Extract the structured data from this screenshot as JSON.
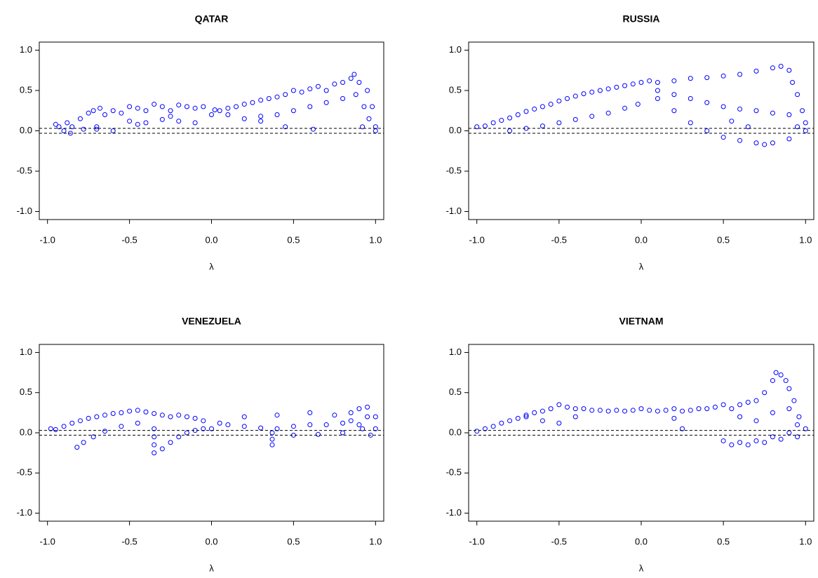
{
  "chart_data": [
    {
      "type": "scatter",
      "title": "QATAR",
      "x_label": "λ",
      "color": "#0000ff",
      "hlines": [
        0.03,
        -0.03
      ],
      "xlim": [
        -1.05,
        1.05
      ],
      "ylim": [
        -1.1,
        1.1
      ],
      "xticks": [
        {
          "value": -1,
          "label": "-1.0"
        },
        -0.5,
        {
          "value": 0,
          "label": "0.0"
        },
        0.5,
        {
          "value": 1,
          "label": "1.0"
        }
      ],
      "yticks": [
        {
          "value": -1,
          "label": "-1.0"
        },
        -0.5,
        {
          "value": 0,
          "label": "0.0"
        },
        0.5,
        {
          "value": 1,
          "label": "1.0"
        }
      ],
      "x": [
        -0.95,
        -0.93,
        -0.9,
        -0.88,
        -0.86,
        -0.85,
        -0.8,
        -0.78,
        -0.75,
        -0.72,
        -0.7,
        -0.68,
        -0.65,
        -0.6,
        -0.55,
        -0.5,
        -0.45,
        -0.4,
        -0.35,
        -0.3,
        -0.25,
        -0.2,
        -0.15,
        -0.1,
        -0.05,
        0.0,
        0.02,
        0.05,
        0.1,
        0.15,
        0.2,
        0.25,
        0.3,
        0.35,
        0.4,
        0.45,
        0.5,
        0.55,
        0.6,
        0.65,
        0.7,
        0.75,
        0.8,
        0.85,
        0.87,
        0.9,
        0.92,
        0.95,
        0.98,
        1.0,
        -0.7,
        -0.6,
        -0.5,
        -0.4,
        -0.3,
        -0.2,
        -0.1,
        0.1,
        0.2,
        0.3,
        0.4,
        0.5,
        0.6,
        0.7,
        0.8,
        0.88,
        0.93,
        0.96,
        1.0,
        0.62,
        0.45,
        0.3,
        -0.45,
        -0.25
      ],
      "y": [
        0.08,
        0.05,
        0.0,
        0.1,
        -0.03,
        0.05,
        0.15,
        0.02,
        0.22,
        0.25,
        0.05,
        0.28,
        0.2,
        0.25,
        0.22,
        0.3,
        0.28,
        0.25,
        0.33,
        0.3,
        0.25,
        0.32,
        0.3,
        0.28,
        0.3,
        0.2,
        0.26,
        0.25,
        0.28,
        0.3,
        0.33,
        0.35,
        0.38,
        0.4,
        0.42,
        0.45,
        0.5,
        0.48,
        0.52,
        0.55,
        0.5,
        0.58,
        0.6,
        0.65,
        0.7,
        0.6,
        0.05,
        0.5,
        0.3,
        0.0,
        0.02,
        0.0,
        0.12,
        0.1,
        0.14,
        0.12,
        0.1,
        0.2,
        0.15,
        0.12,
        0.2,
        0.25,
        0.3,
        0.35,
        0.4,
        0.45,
        0.3,
        0.15,
        0.05,
        0.02,
        0.05,
        0.18,
        0.08,
        0.18
      ]
    },
    {
      "type": "scatter",
      "title": "RUSSIA",
      "x_label": "λ",
      "color": "#0000ff",
      "hlines": [
        0.03,
        -0.03
      ],
      "xlim": [
        -1.05,
        1.05
      ],
      "ylim": [
        -1.1,
        1.1
      ],
      "xticks": [
        {
          "value": -1,
          "label": "-1.0"
        },
        -0.5,
        {
          "value": 0,
          "label": "0.0"
        },
        0.5,
        {
          "value": 1,
          "label": "1.0"
        }
      ],
      "yticks": [
        {
          "value": -1,
          "label": "-1.0"
        },
        -0.5,
        {
          "value": 0,
          "label": "0.0"
        },
        0.5,
        {
          "value": 1,
          "label": "1.0"
        }
      ],
      "x": [
        -1.0,
        -0.95,
        -0.9,
        -0.85,
        -0.8,
        -0.75,
        -0.7,
        -0.65,
        -0.6,
        -0.55,
        -0.5,
        -0.45,
        -0.4,
        -0.35,
        -0.3,
        -0.25,
        -0.2,
        -0.15,
        -0.1,
        -0.05,
        0.0,
        -0.8,
        -0.7,
        -0.6,
        -0.5,
        -0.4,
        -0.3,
        -0.2,
        -0.1,
        -0.02,
        0.05,
        0.1,
        0.2,
        0.3,
        0.4,
        0.5,
        0.6,
        0.7,
        0.8,
        0.85,
        0.9,
        0.1,
        0.2,
        0.3,
        0.4,
        0.5,
        0.6,
        0.7,
        0.8,
        0.9,
        0.1,
        0.2,
        0.3,
        0.4,
        0.5,
        0.6,
        0.7,
        0.75,
        0.8,
        0.9,
        0.95,
        1.0,
        0.92,
        0.95,
        0.98,
        1.0,
        0.55,
        0.65
      ],
      "y": [
        0.05,
        0.06,
        0.1,
        0.13,
        0.16,
        0.2,
        0.24,
        0.27,
        0.3,
        0.33,
        0.37,
        0.4,
        0.43,
        0.46,
        0.48,
        0.5,
        0.52,
        0.54,
        0.56,
        0.58,
        0.6,
        0.0,
        0.03,
        0.06,
        0.1,
        0.14,
        0.18,
        0.22,
        0.28,
        0.33,
        0.62,
        0.6,
        0.62,
        0.65,
        0.66,
        0.68,
        0.7,
        0.74,
        0.78,
        0.8,
        0.75,
        0.5,
        0.45,
        0.4,
        0.35,
        0.3,
        0.27,
        0.25,
        0.22,
        0.2,
        0.4,
        0.25,
        0.1,
        0.0,
        -0.08,
        -0.12,
        -0.15,
        -0.17,
        -0.15,
        -0.1,
        0.05,
        0.0,
        0.6,
        0.45,
        0.25,
        0.1,
        0.12,
        0.05
      ]
    },
    {
      "type": "scatter",
      "title": "VENEZUELA",
      "x_label": "λ",
      "color": "#0000ff",
      "hlines": [
        0.03,
        -0.03
      ],
      "xlim": [
        -1.05,
        1.05
      ],
      "ylim": [
        -1.1,
        1.1
      ],
      "xticks": [
        {
          "value": -1,
          "label": "-1.0"
        },
        -0.5,
        {
          "value": 0,
          "label": "0.0"
        },
        0.5,
        {
          "value": 1,
          "label": "1.0"
        }
      ],
      "yticks": [
        {
          "value": -1,
          "label": "-1.0"
        },
        -0.5,
        {
          "value": 0,
          "label": "0.0"
        },
        0.5,
        {
          "value": 1,
          "label": "1.0"
        }
      ],
      "x": [
        -0.98,
        -0.95,
        -0.9,
        -0.85,
        -0.8,
        -0.75,
        -0.7,
        -0.65,
        -0.6,
        -0.55,
        -0.5,
        -0.45,
        -0.4,
        -0.35,
        -0.3,
        -0.25,
        -0.2,
        -0.15,
        -0.1,
        -0.05,
        0.0,
        -0.82,
        -0.78,
        -0.72,
        -0.65,
        -0.55,
        -0.45,
        -0.35,
        -0.35,
        -0.35,
        -0.35,
        -0.3,
        -0.25,
        -0.2,
        -0.15,
        -0.1,
        -0.05,
        0.05,
        0.1,
        0.2,
        0.3,
        0.37,
        0.37,
        0.37,
        0.4,
        0.5,
        0.6,
        0.7,
        0.8,
        0.85,
        0.9,
        0.95,
        1.0,
        0.2,
        0.4,
        0.6,
        0.75,
        0.85,
        0.92,
        0.97,
        1.0,
        0.5,
        0.65,
        0.8,
        0.9,
        0.95
      ],
      "y": [
        0.05,
        0.04,
        0.08,
        0.12,
        0.15,
        0.18,
        0.2,
        0.22,
        0.24,
        0.25,
        0.27,
        0.28,
        0.26,
        0.24,
        0.22,
        0.2,
        0.22,
        0.2,
        0.18,
        0.15,
        0.05,
        -0.18,
        -0.12,
        -0.05,
        0.02,
        0.08,
        0.12,
        0.05,
        -0.05,
        -0.15,
        -0.25,
        -0.2,
        -0.12,
        -0.05,
        0.0,
        0.03,
        0.05,
        0.12,
        0.1,
        0.08,
        0.06,
        0.0,
        -0.08,
        -0.15,
        0.05,
        0.08,
        0.1,
        0.1,
        0.12,
        0.25,
        0.3,
        0.32,
        0.2,
        0.2,
        0.22,
        0.25,
        0.22,
        0.15,
        0.05,
        -0.03,
        0.05,
        -0.03,
        -0.02,
        0.0,
        0.1,
        0.2
      ]
    },
    {
      "type": "scatter",
      "title": "VIETNAM",
      "x_label": "λ",
      "color": "#0000ff",
      "hlines": [
        0.03,
        -0.03
      ],
      "xlim": [
        -1.05,
        1.05
      ],
      "ylim": [
        -1.1,
        1.1
      ],
      "xticks": [
        {
          "value": -1,
          "label": "-1.0"
        },
        -0.5,
        {
          "value": 0,
          "label": "0.0"
        },
        0.5,
        {
          "value": 1,
          "label": "1.0"
        }
      ],
      "yticks": [
        {
          "value": -1,
          "label": "-1.0"
        },
        -0.5,
        {
          "value": 0,
          "label": "0.0"
        },
        0.5,
        {
          "value": 1,
          "label": "1.0"
        }
      ],
      "x": [
        -1.0,
        -0.95,
        -0.9,
        -0.85,
        -0.8,
        -0.75,
        -0.7,
        -0.65,
        -0.6,
        -0.55,
        -0.5,
        -0.45,
        -0.4,
        -0.35,
        -0.3,
        -0.25,
        -0.2,
        -0.15,
        -0.1,
        -0.05,
        0.0,
        0.05,
        0.1,
        0.15,
        0.2,
        0.25,
        0.3,
        0.35,
        0.4,
        0.45,
        0.5,
        0.55,
        0.6,
        0.65,
        0.7,
        0.75,
        0.8,
        0.82,
        0.85,
        0.88,
        0.9,
        0.93,
        0.96,
        1.0,
        -0.7,
        -0.6,
        -0.5,
        -0.4,
        0.2,
        0.25,
        0.5,
        0.55,
        0.6,
        0.65,
        0.7,
        0.75,
        0.8,
        0.85,
        0.9,
        0.95,
        0.6,
        0.7,
        0.8,
        0.9,
        0.95
      ],
      "y": [
        0.02,
        0.05,
        0.08,
        0.12,
        0.15,
        0.18,
        0.22,
        0.25,
        0.27,
        0.3,
        0.35,
        0.32,
        0.3,
        0.3,
        0.28,
        0.28,
        0.27,
        0.28,
        0.27,
        0.28,
        0.3,
        0.28,
        0.27,
        0.28,
        0.3,
        0.27,
        0.28,
        0.3,
        0.3,
        0.32,
        0.35,
        0.3,
        0.35,
        0.38,
        0.4,
        0.5,
        0.65,
        0.75,
        0.72,
        0.65,
        0.55,
        0.4,
        0.2,
        0.05,
        0.2,
        0.15,
        0.12,
        0.2,
        0.18,
        0.05,
        -0.1,
        -0.15,
        -0.12,
        -0.15,
        -0.1,
        -0.12,
        -0.05,
        -0.08,
        0.0,
        -0.05,
        0.2,
        0.15,
        0.25,
        0.3,
        0.1
      ]
    }
  ]
}
